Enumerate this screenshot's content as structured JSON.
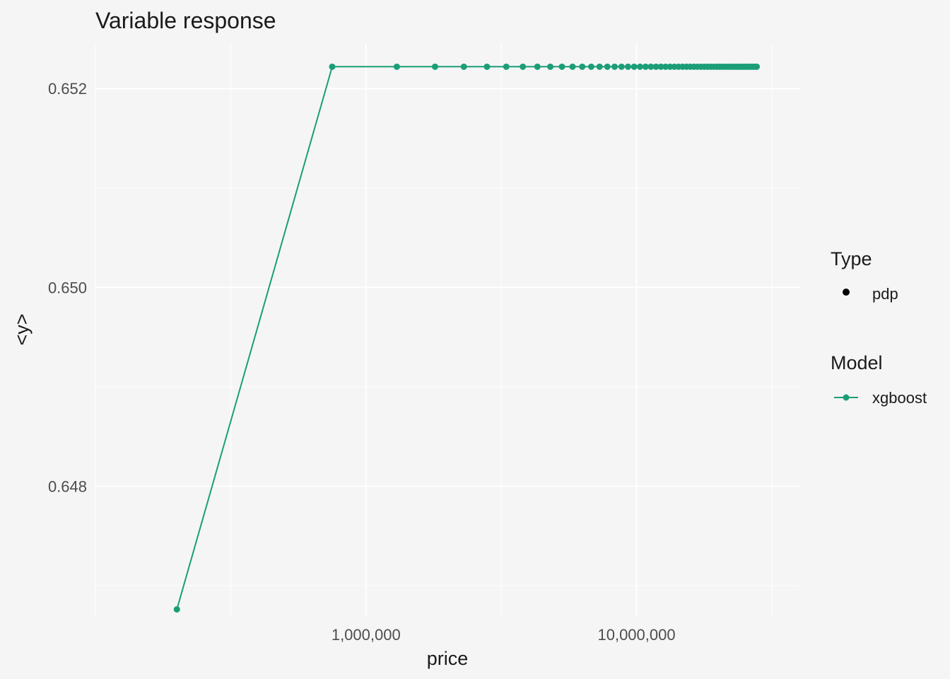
{
  "chart_data": {
    "type": "line",
    "title": "Variable response",
    "xlabel": "price",
    "ylabel": "<y>",
    "x_scale": "log10",
    "x_ticks": [
      {
        "value": 1000000,
        "label": "1,000,000"
      },
      {
        "value": 10000000,
        "label": "10,000,000"
      }
    ],
    "y_ticks": [
      {
        "value": 0.648,
        "label": "0.648"
      },
      {
        "value": 0.65,
        "label": "0.650"
      },
      {
        "value": 0.652,
        "label": "0.652"
      }
    ],
    "xlim": [
      100000,
      40000000
    ],
    "ylim": [
      0.6467,
      0.65245
    ],
    "grid": true,
    "legend_placement": "right",
    "legend": {
      "type_title": "Type",
      "type_entries": [
        {
          "label": "pdp"
        }
      ],
      "model_title": "Model",
      "model_entries": [
        {
          "label": "xgboost",
          "color": "#1b9e77"
        }
      ]
    },
    "series": [
      {
        "name": "xgboost",
        "color": "#1b9e77",
        "x": [
          200000,
          750000,
          1300000,
          1800000,
          2300000,
          2800000,
          3300000,
          3800000,
          4300000,
          4800000,
          5300000,
          5800000,
          6300000,
          6800000,
          7300000,
          7800000,
          8300000,
          8800000,
          9300000,
          9800000,
          10300000,
          10800000,
          11300000,
          11800000,
          12300000,
          12800000,
          13300000,
          13800000,
          14300000,
          14800000,
          15300000,
          15800000,
          16300000,
          16800000,
          17300000,
          17800000,
          18300000,
          18800000,
          19300000,
          19800000,
          20300000,
          20800000,
          21300000,
          21800000,
          22300000,
          22800000,
          23300000,
          23800000,
          24300000,
          24800000,
          25300000,
          25800000,
          26300000,
          26800000,
          27300000,
          27800000
        ],
        "y": [
          0.64676,
          0.65222,
          0.65222,
          0.65222,
          0.65222,
          0.65222,
          0.65222,
          0.65222,
          0.65222,
          0.65222,
          0.65222,
          0.65222,
          0.65222,
          0.65222,
          0.65222,
          0.65222,
          0.65222,
          0.65222,
          0.65222,
          0.65222,
          0.65222,
          0.65222,
          0.65222,
          0.65222,
          0.65222,
          0.65222,
          0.65222,
          0.65222,
          0.65222,
          0.65222,
          0.65222,
          0.65222,
          0.65222,
          0.65222,
          0.65222,
          0.65222,
          0.65222,
          0.65222,
          0.65222,
          0.65222,
          0.65222,
          0.65222,
          0.65222,
          0.65222,
          0.65222,
          0.65222,
          0.65222,
          0.65222,
          0.65222,
          0.65222,
          0.65222,
          0.65222,
          0.65222,
          0.65222,
          0.65222,
          0.65222
        ]
      }
    ]
  }
}
